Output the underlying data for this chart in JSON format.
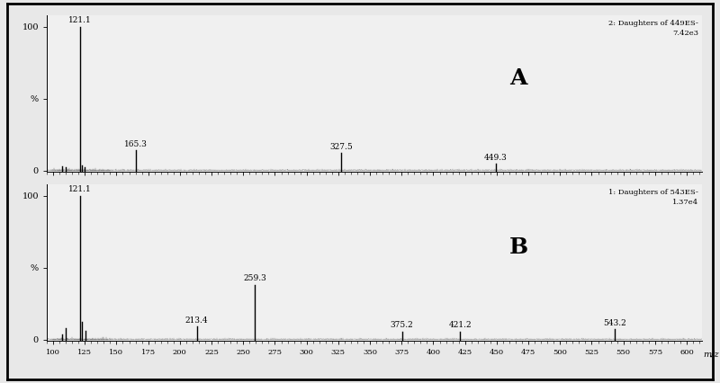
{
  "panel_A": {
    "label": "A",
    "annotation": "2: Daughters of 449ES-\n7.42e3",
    "peaks": [
      {
        "mz": 107.0,
        "intensity": 3.0,
        "label": false
      },
      {
        "mz": 110.0,
        "intensity": 2.5,
        "label": false
      },
      {
        "mz": 121.1,
        "intensity": 100.0,
        "label": true
      },
      {
        "mz": 123.0,
        "intensity": 3.5,
        "label": false
      },
      {
        "mz": 125.0,
        "intensity": 2.0,
        "label": false
      },
      {
        "mz": 165.3,
        "intensity": 14.0,
        "label": true
      },
      {
        "mz": 327.5,
        "intensity": 12.0,
        "label": true
      },
      {
        "mz": 449.3,
        "intensity": 4.5,
        "label": true
      }
    ]
  },
  "panel_B": {
    "label": "B",
    "annotation": "1: Daughters of 543ES-\n1.37e4",
    "peaks": [
      {
        "mz": 107.0,
        "intensity": 3.5,
        "label": false
      },
      {
        "mz": 110.0,
        "intensity": 8.0,
        "label": false
      },
      {
        "mz": 121.1,
        "intensity": 100.0,
        "label": true
      },
      {
        "mz": 123.0,
        "intensity": 12.0,
        "label": false
      },
      {
        "mz": 125.5,
        "intensity": 6.0,
        "label": false
      },
      {
        "mz": 213.4,
        "intensity": 9.0,
        "label": true
      },
      {
        "mz": 259.3,
        "intensity": 38.0,
        "label": true
      },
      {
        "mz": 375.2,
        "intensity": 5.5,
        "label": true
      },
      {
        "mz": 421.2,
        "intensity": 5.5,
        "label": true
      },
      {
        "mz": 543.2,
        "intensity": 7.0,
        "label": true
      }
    ]
  },
  "xmin": 95,
  "xmax": 612,
  "xticks": [
    100,
    125,
    150,
    175,
    200,
    225,
    250,
    275,
    300,
    325,
    350,
    375,
    400,
    425,
    450,
    475,
    500,
    525,
    550,
    575,
    600
  ],
  "xlabel": "m/z",
  "background_color": "#e8e8e8",
  "panel_bg": "#f0f0f0",
  "peak_color": "#000000"
}
